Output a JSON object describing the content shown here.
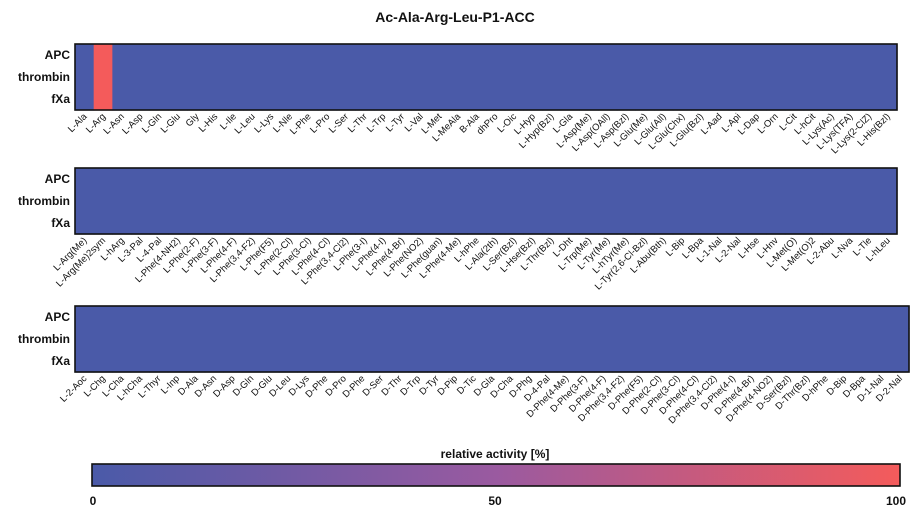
{
  "chart_data": {
    "type": "heatmap",
    "title": "Ac-Ala-Arg-Leu-P1-ACC",
    "rows": [
      "APC",
      "thrombin",
      "fXa"
    ],
    "colorscale": [
      "#4a5aa8",
      "#9a5aa0",
      "#f45b5b"
    ],
    "colorbar": {
      "label": "relative activity [%]",
      "min": 0,
      "max": 100,
      "ticks": [
        0,
        50,
        100
      ]
    },
    "panels": [
      {
        "columns": [
          "L-Ala",
          "L-Arg",
          "L-Asn",
          "L-Asp",
          "L-Gln",
          "L-Glu",
          "Gly",
          "L-His",
          "L-Ile",
          "L-Leu",
          "L-Lys",
          "L-Nle",
          "L-Phe",
          "L-Pro",
          "L-Ser",
          "L-Thr",
          "L-Trp",
          "L-Tyr",
          "L-Val",
          "L-Met",
          "L-MeAla",
          "B-Ala",
          "dhPro",
          "L-Oic",
          "L-Hyp",
          "L-Hyp(Bzl)",
          "L-Gla",
          "L-Asp(Me)",
          "L-Asp(OAll)",
          "L-Asp(Bzl)",
          "L-Glu(Me)",
          "L-Glu(All)",
          "L-Glu(Chx)",
          "L-Glu(Bzl)",
          "L-Aad",
          "L-Api",
          "L-Dap",
          "L-Orn",
          "L-Cit",
          "L-hCit",
          "L-Lys(Ac)",
          "L-Lys(TFA)",
          "L-Lys(2-ClZ)",
          "L-His(Bzl)"
        ],
        "values": [
          [
            0,
            100,
            0,
            0,
            0,
            0,
            0,
            0,
            0,
            0,
            0,
            0,
            0,
            0,
            0,
            0,
            0,
            0,
            0,
            0,
            0,
            0,
            0,
            0,
            0,
            0,
            0,
            0,
            0,
            0,
            0,
            0,
            0,
            0,
            0,
            0,
            0,
            0,
            0,
            0,
            0,
            0,
            0,
            0
          ],
          [
            0,
            100,
            0,
            0,
            0,
            0,
            0,
            0,
            0,
            0,
            0,
            0,
            0,
            0,
            0,
            0,
            0,
            0,
            0,
            0,
            0,
            0,
            0,
            0,
            0,
            0,
            0,
            0,
            0,
            0,
            0,
            0,
            0,
            0,
            0,
            0,
            0,
            0,
            0,
            0,
            0,
            0,
            0,
            0
          ],
          [
            0,
            100,
            0,
            0,
            0,
            0,
            0,
            0,
            0,
            0,
            0,
            0,
            0,
            0,
            0,
            0,
            0,
            0,
            0,
            0,
            0,
            0,
            0,
            0,
            0,
            0,
            0,
            0,
            0,
            0,
            0,
            0,
            0,
            0,
            0,
            0,
            0,
            0,
            0,
            0,
            0,
            0,
            0,
            0
          ]
        ]
      },
      {
        "columns": [
          "L-Arg(Me)",
          "L-Arg(Me)2sym",
          "L-hArg",
          "L-3-Pal",
          "L-4-Pal",
          "L-Phe(4-NH2)",
          "L-Phe(2-F)",
          "L-Phe(3-F)",
          "L-Phe(4-F)",
          "L-Phe(3,4-F2)",
          "L-Phe(F5)",
          "L-Phe(2-Cl)",
          "L-Phe(3-Cl)",
          "L-Phe(4-Cl)",
          "L-Phe(3,4-Cl2)",
          "L-Phe(3-I)",
          "L-Phe(4-I)",
          "L-Phe(4-Br)",
          "L-Phe(NO2)",
          "L-Phe(guan)",
          "L-Phe(4-Me)",
          "L-hPhe",
          "L-Ala(2th)",
          "L-Ser(Bzl)",
          "L-Hse(Bzl)",
          "L-Thr(Bzl)",
          "L-Dht",
          "L-Trp(Me)",
          "L-Tyr(Me)",
          "L-hTyr(Me)",
          "L-Tyr(2,6-Cl-Bzl)",
          "L-Abu(Bth)",
          "L-Bip",
          "L-Bpa",
          "L-1-Nal",
          "L-2-Nal",
          "L-Hse",
          "L-Hnv",
          "L-Met(O)",
          "L-Met(O)2",
          "L-2-Abu",
          "L-Nva",
          "L-Tle",
          "L-hLeu"
        ],
        "values": [
          [
            0,
            0,
            0,
            0,
            0,
            0,
            0,
            0,
            0,
            0,
            0,
            0,
            0,
            0,
            0,
            0,
            0,
            0,
            0,
            0,
            0,
            0,
            0,
            0,
            0,
            0,
            0,
            0,
            0,
            0,
            0,
            0,
            0,
            0,
            0,
            0,
            0,
            0,
            0,
            0,
            0,
            0,
            0,
            0
          ],
          [
            0,
            0,
            0,
            0,
            0,
            0,
            0,
            0,
            0,
            0,
            0,
            0,
            0,
            0,
            0,
            0,
            0,
            0,
            0,
            0,
            0,
            0,
            0,
            0,
            0,
            0,
            0,
            0,
            0,
            0,
            0,
            0,
            0,
            0,
            0,
            0,
            0,
            0,
            0,
            0,
            0,
            0,
            0,
            0
          ],
          [
            0,
            0,
            0,
            0,
            0,
            0,
            0,
            0,
            0,
            0,
            0,
            0,
            0,
            0,
            0,
            0,
            0,
            0,
            0,
            0,
            0,
            0,
            0,
            0,
            0,
            0,
            0,
            0,
            0,
            0,
            0,
            0,
            0,
            0,
            0,
            0,
            0,
            0,
            0,
            0,
            0,
            0,
            0,
            0
          ]
        ]
      },
      {
        "columns": [
          "L-2-Aoc",
          "L-Chg",
          "L-Cha",
          "L-hCha",
          "L-Thyr",
          "L-Inp",
          "D-Ala",
          "D-Asn",
          "D-Asp",
          "D-Gln",
          "D-Glu",
          "D-Leu",
          "D-Lys",
          "D-Phe",
          "D-Pro",
          "D-Phe",
          "D-Ser",
          "D-Thr",
          "D-Trp",
          "D-Tyr",
          "D-Pip",
          "D-Tic",
          "D-Gla",
          "D-Cha",
          "D-Phg",
          "D-4-Pal",
          "D-Phe(4-Me)",
          "D-Phe(3-F)",
          "D-Phe(4-F)",
          "D-Phe(3,4-F2)",
          "D-Phe(F5)",
          "D-Phe(2-Cl)",
          "D-Phe(3-Cl)",
          "D-Phe(4-Cl)",
          "D-Phe(3,4-Cl2)",
          "D-Phe(4-I)",
          "D-Phe(4-Br)",
          "D-Phe(4-NO2)",
          "D-Ser(Bzl)",
          "D-Thr(Bzl)",
          "D-hPhe",
          "D-Bip",
          "D-Bpa",
          "D-1-Nal",
          "D-2-Nal"
        ],
        "values": [
          [
            0,
            0,
            0,
            0,
            0,
            0,
            0,
            0,
            0,
            0,
            0,
            0,
            0,
            0,
            0,
            0,
            0,
            0,
            0,
            0,
            0,
            0,
            0,
            0,
            0,
            0,
            0,
            0,
            0,
            0,
            0,
            0,
            0,
            0,
            0,
            0,
            0,
            0,
            0,
            0,
            0,
            0,
            0,
            0,
            0
          ],
          [
            0,
            0,
            0,
            0,
            0,
            0,
            0,
            0,
            0,
            0,
            0,
            0,
            0,
            0,
            0,
            0,
            0,
            0,
            0,
            0,
            0,
            0,
            0,
            0,
            0,
            0,
            0,
            0,
            0,
            0,
            0,
            0,
            0,
            0,
            0,
            0,
            0,
            0,
            0,
            0,
            0,
            0,
            0,
            0,
            0
          ],
          [
            0,
            0,
            0,
            0,
            0,
            0,
            0,
            0,
            0,
            0,
            0,
            0,
            0,
            0,
            0,
            0,
            0,
            0,
            0,
            0,
            0,
            0,
            0,
            0,
            0,
            0,
            0,
            0,
            0,
            0,
            0,
            0,
            0,
            0,
            0,
            0,
            0,
            0,
            0,
            0,
            0,
            0,
            0,
            0,
            0
          ]
        ]
      }
    ]
  }
}
